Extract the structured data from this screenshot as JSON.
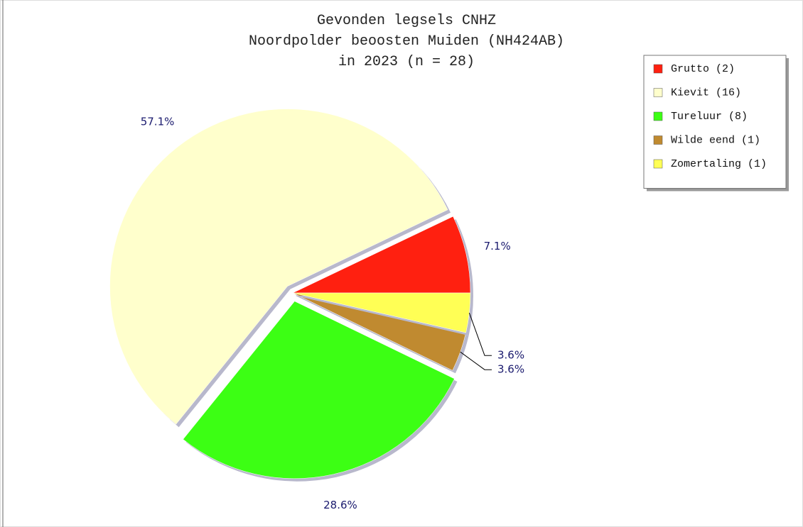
{
  "chart_data": {
    "type": "pie",
    "title": [
      "Gevonden legsels CNHZ",
      "Noordpolder beoosten Muiden (NH424AB)",
      "in 2023 (n = 28)"
    ],
    "categories": [
      "Grutto (2)",
      "Kievit (16)",
      "Tureluur (8)",
      "Wilde eend (1)",
      "Zomertaling (1)"
    ],
    "values": [
      7.1,
      57.1,
      28.6,
      3.6,
      3.6
    ],
    "value_labels": [
      "7.1%",
      "57.1%",
      "28.6%",
      "3.6%",
      "3.6%"
    ],
    "colors": [
      "#ff2010",
      "#ffffcc",
      "#3cff14",
      "#c08a30",
      "#ffff55"
    ],
    "legend": "top-right"
  }
}
